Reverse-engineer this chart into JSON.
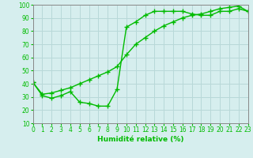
{
  "line1_x": [
    0,
    1,
    2,
    3,
    4,
    5,
    6,
    7,
    8,
    9,
    10,
    11,
    12,
    13,
    14,
    15,
    16,
    17,
    18,
    19,
    20,
    21,
    22,
    23
  ],
  "line1_y": [
    41,
    31,
    29,
    31,
    34,
    26,
    25,
    23,
    23,
    36,
    83,
    87,
    92,
    95,
    95,
    95,
    95,
    93,
    92,
    92,
    95,
    95,
    97,
    95
  ],
  "line2_x": [
    0,
    1,
    2,
    3,
    4,
    5,
    6,
    7,
    8,
    9,
    10,
    11,
    12,
    13,
    14,
    15,
    16,
    17,
    18,
    19,
    20,
    21,
    22,
    23
  ],
  "line2_y": [
    41,
    32,
    33,
    35,
    37,
    40,
    43,
    46,
    49,
    53,
    62,
    70,
    75,
    80,
    84,
    87,
    90,
    92,
    93,
    95,
    97,
    98,
    99,
    95
  ],
  "line_color": "#00bb00",
  "marker": "+",
  "markersize": 4,
  "markeredgewidth": 1.0,
  "linewidth": 1.0,
  "xlabel": "Humidité relative (%)",
  "ylim": [
    10,
    100
  ],
  "xlim": [
    0,
    23
  ],
  "yticks": [
    10,
    20,
    30,
    40,
    50,
    60,
    70,
    80,
    90,
    100
  ],
  "xticks": [
    0,
    1,
    2,
    3,
    4,
    5,
    6,
    7,
    8,
    9,
    10,
    11,
    12,
    13,
    14,
    15,
    16,
    17,
    18,
    19,
    20,
    21,
    22,
    23
  ],
  "bg_color": "#d6eeee",
  "grid_color": "#b8d8d8",
  "tick_fontsize": 5.5,
  "xlabel_fontsize": 6.5
}
